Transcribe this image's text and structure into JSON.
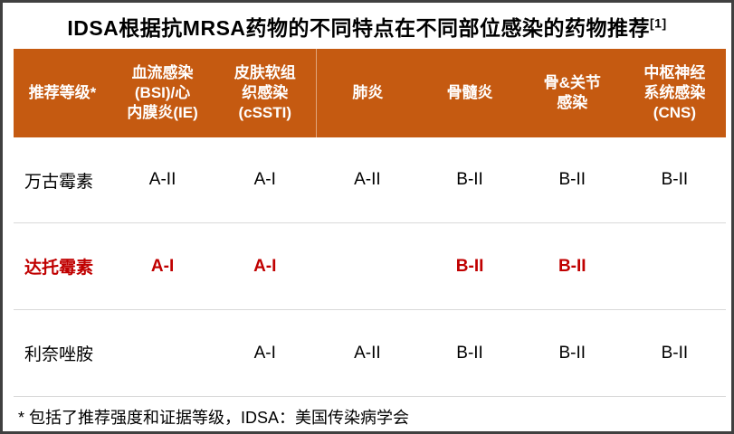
{
  "title": {
    "text": "IDSA根据抗MRSA药物的不同特点在不同部位感染的药物推荐",
    "superscript": "[1]"
  },
  "table": {
    "columns": [
      "推荐等级*",
      "血流感染\n(BSI)/心\n内膜炎(IE)",
      "皮肤软组\n织感染\n(cSSTI)",
      "肺炎",
      "骨髓炎",
      "骨&关节\n感染",
      "中枢神经\n系统感染\n(CNS)"
    ],
    "rows": [
      {
        "drug": "万古霉素",
        "values": [
          "A-II",
          "A-I",
          "A-II",
          "B-II",
          "B-II",
          "B-II"
        ],
        "emphasis": false
      },
      {
        "drug": "达托霉素",
        "values": [
          "A-I",
          "A-I",
          "",
          "B-II",
          "B-II",
          ""
        ],
        "emphasis": true
      },
      {
        "drug": "利奈唑胺",
        "values": [
          "",
          "A-I",
          "A-II",
          "B-II",
          "B-II",
          "B-II"
        ],
        "emphasis": false
      }
    ]
  },
  "footnote": "* 包括了推荐强度和证据等级，IDSA：美国传染病学会",
  "colors": {
    "header_bg": "#C55A11",
    "header_text": "#FFFFFF",
    "emphasis_text": "#C00000",
    "body_text": "#000000",
    "frame_border": "#404040",
    "row_divider": "#D9D9D9"
  }
}
